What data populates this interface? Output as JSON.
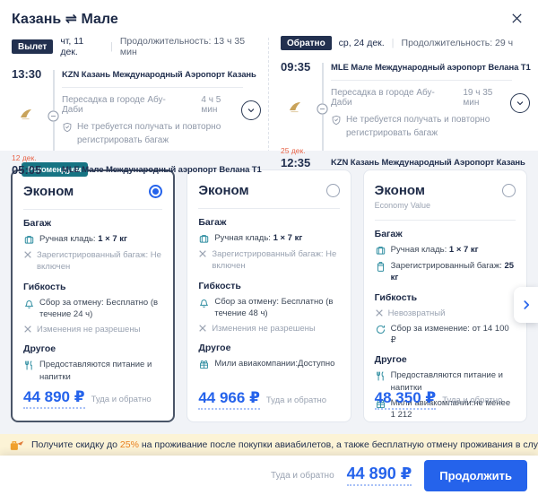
{
  "header": {
    "title": "Казань ⇌ Мале"
  },
  "colors": {
    "accent_blue": "#2563eb",
    "navy": "#22304f",
    "teal_badge": "#177483",
    "teal_icon": "#2e8da0",
    "orange_date": "#e8654a",
    "promo_bg": "#fcf3d6",
    "promo_orange": "#e87f1e",
    "section_bg": "#f1f3f7"
  },
  "flights": [
    {
      "badge": "Вылет",
      "date": "чт, 11 дек.",
      "duration": "Продолжительность: 13 ч 35 мин",
      "departure": {
        "time": "13:30",
        "airport": "KZN Казань Международный Аэропорт Казань"
      },
      "transfer": {
        "label": "Пересадка в городе Абу-Даби",
        "duration": "4 ч 5 мин",
        "note": "Не требуется получать и повторно регистрировать багаж"
      },
      "arrival": {
        "date": "12 дек.",
        "time": "05:05",
        "airport": "MLE Мале Международный аэропорт Велана T1"
      }
    },
    {
      "badge": "Обратно",
      "date": "ср, 24 дек.",
      "duration": "Продолжительность: 29 ч",
      "departure": {
        "time": "09:35",
        "airport": "MLE Мале Международный аэропорт Велана T1"
      },
      "transfer": {
        "label": "Пересадка в городе Абу-Даби",
        "duration": "19 ч 35 мин",
        "note": "Не требуется получать и повторно регистрировать багаж"
      },
      "arrival": {
        "date": "25 дек.",
        "time": "12:35",
        "airport": "KZN Казань Международный Аэропорт Казань"
      }
    }
  ],
  "fares": {
    "cards": [
      {
        "badge": "Рекомендуем",
        "title": "Эконом",
        "subtitle": "",
        "selected": true,
        "sections": [
          {
            "title": "Багаж",
            "items": [
              {
                "icon": "hand-luggage",
                "text": "Ручная кладь: ",
                "bold": "1 × 7 кг",
                "muted": false
              },
              {
                "icon": "cross",
                "text": "Зарегистрированный багаж: Не включен",
                "bold": "",
                "muted": true
              }
            ]
          },
          {
            "title": "Гибкость",
            "items": [
              {
                "icon": "cancel-fee",
                "text": "Сбор за отмену: Бесплатно (в течение 24 ч)",
                "bold": "",
                "muted": false
              },
              {
                "icon": "cross",
                "text": "Изменения не разрешены",
                "bold": "",
                "muted": true
              }
            ]
          },
          {
            "title": "Другое",
            "items": [
              {
                "icon": "meal",
                "text": "Предоставляются питание и напитки",
                "bold": "",
                "muted": false
              }
            ]
          }
        ],
        "price": "44 890 ₽",
        "price_note": "Туда и обратно"
      },
      {
        "badge": "",
        "title": "Эконом",
        "subtitle": "",
        "selected": false,
        "sections": [
          {
            "title": "Багаж",
            "items": [
              {
                "icon": "hand-luggage",
                "text": "Ручная кладь: ",
                "bold": "1 × 7 кг",
                "muted": false
              },
              {
                "icon": "cross",
                "text": "Зарегистрированный багаж: Не включен",
                "bold": "",
                "muted": true
              }
            ]
          },
          {
            "title": "Гибкость",
            "items": [
              {
                "icon": "cancel-fee",
                "text": "Сбор за отмену: Бесплатно (в течение 48 ч)",
                "bold": "",
                "muted": false
              },
              {
                "icon": "cross",
                "text": "Изменения не разрешены",
                "bold": "",
                "muted": true
              }
            ]
          },
          {
            "title": "Другое",
            "items": [
              {
                "icon": "miles",
                "text": "Мили авиакомпании:Доступно",
                "bold": "",
                "muted": false
              }
            ]
          }
        ],
        "price": "44 966 ₽",
        "price_note": "Туда и обратно"
      },
      {
        "badge": "",
        "title": "Эконом",
        "subtitle": "Economy Value",
        "selected": false,
        "sections": [
          {
            "title": "Багаж",
            "items": [
              {
                "icon": "hand-luggage",
                "text": "Ручная кладь: ",
                "bold": "1 × 7 кг",
                "muted": false
              },
              {
                "icon": "checked-bag",
                "text": "Зарегистрированный багаж: ",
                "bold": "25 кг",
                "muted": false
              }
            ]
          },
          {
            "title": "Гибкость",
            "items": [
              {
                "icon": "cross",
                "text": "Невозвратный",
                "bold": "",
                "muted": true
              },
              {
                "icon": "change-fee",
                "text": "Сбор за изменение: от 14 100 ₽",
                "bold": "",
                "muted": false
              }
            ]
          },
          {
            "title": "Другое",
            "items": [
              {
                "icon": "meal",
                "text": "Предоставляются питание и напитки",
                "bold": "",
                "muted": false
              },
              {
                "icon": "miles",
                "text": "Мили авиакомпании:не менее 1 212",
                "bold": "",
                "muted": false
              }
            ]
          }
        ],
        "price": "48 350 ₽",
        "price_note": "Туда и обратно"
      }
    ]
  },
  "promo": {
    "prefix": "Получите скидку до ",
    "highlight": "25%",
    "suffix": " на проживание после покупки авиабилетов, а также бесплатную отмену проживания в случае переноса рейса на другое"
  },
  "footer": {
    "total_label": "Туда и обратно",
    "total_price": "44 890 ₽",
    "continue_label": "Продолжить"
  }
}
